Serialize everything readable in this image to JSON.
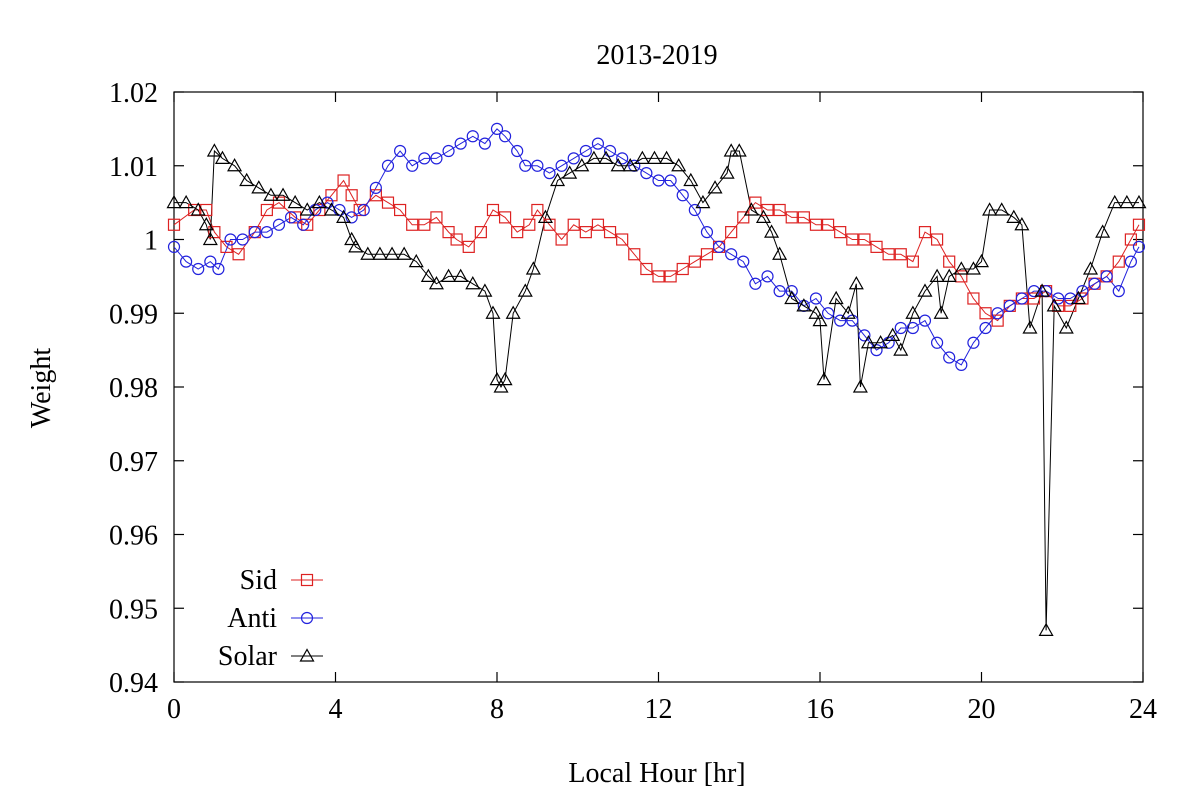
{
  "chart_data": {
    "type": "scatter",
    "title": "2013-2019",
    "xlabel": "Local Hour [hr]",
    "ylabel": "Weight",
    "xlim": [
      0,
      24
    ],
    "ylim": [
      0.94,
      1.02
    ],
    "xticks": [
      0,
      4,
      8,
      12,
      16,
      20,
      24
    ],
    "xtick_labels": [
      "0",
      "4",
      "8",
      "12",
      "16",
      "20",
      "24"
    ],
    "yticks": [
      0.94,
      0.95,
      0.96,
      0.97,
      0.98,
      0.99,
      1.0,
      1.01,
      1.02
    ],
    "ytick_labels": [
      "0.94",
      "0.95",
      "0.96",
      "0.97",
      "0.98",
      "0.99",
      "1",
      "1.01",
      "1.02"
    ],
    "grid": false,
    "legend_position": "bottom-left",
    "series": [
      {
        "name": "Sid",
        "color": "#dd2222",
        "marker": "square",
        "x": [
          0.0,
          0.5,
          0.8,
          1.0,
          1.3,
          1.6,
          2.0,
          2.3,
          2.6,
          3.0,
          3.3,
          3.6,
          3.9,
          4.2,
          4.4,
          4.6,
          5.0,
          5.3,
          5.6,
          5.9,
          6.2,
          6.5,
          6.8,
          7.0,
          7.3,
          7.6,
          7.9,
          8.2,
          8.5,
          8.8,
          9.0,
          9.3,
          9.6,
          9.9,
          10.2,
          10.5,
          10.8,
          11.1,
          11.4,
          11.7,
          12.0,
          12.3,
          12.6,
          12.9,
          13.2,
          13.5,
          13.8,
          14.1,
          14.4,
          14.7,
          15.0,
          15.3,
          15.6,
          15.9,
          16.2,
          16.5,
          16.8,
          17.1,
          17.4,
          17.7,
          18.0,
          18.3,
          18.6,
          18.9,
          19.2,
          19.5,
          19.8,
          20.1,
          20.4,
          20.7,
          21.0,
          21.3,
          21.6,
          21.9,
          22.2,
          22.5,
          22.8,
          23.1,
          23.4,
          23.7,
          23.9
        ],
        "y": [
          1.002,
          1.004,
          1.004,
          1.001,
          0.999,
          0.998,
          1.001,
          1.004,
          1.005,
          1.003,
          1.002,
          1.004,
          1.006,
          1.008,
          1.006,
          1.004,
          1.006,
          1.005,
          1.004,
          1.002,
          1.002,
          1.003,
          1.001,
          1.0,
          0.999,
          1.001,
          1.004,
          1.003,
          1.001,
          1.002,
          1.004,
          1.002,
          1.0,
          1.002,
          1.001,
          1.002,
          1.001,
          1.0,
          0.998,
          0.996,
          0.995,
          0.995,
          0.996,
          0.997,
          0.998,
          0.999,
          1.001,
          1.003,
          1.005,
          1.004,
          1.004,
          1.003,
          1.003,
          1.002,
          1.002,
          1.001,
          1.0,
          1.0,
          0.999,
          0.998,
          0.998,
          0.997,
          1.001,
          1.0,
          0.997,
          0.995,
          0.992,
          0.99,
          0.989,
          0.991,
          0.992,
          0.992,
          0.993,
          0.991,
          0.991,
          0.992,
          0.994,
          0.995,
          0.997,
          1.0,
          1.002
        ]
      },
      {
        "name": "Anti",
        "color": "#2222dd",
        "marker": "circle",
        "x": [
          0.0,
          0.3,
          0.6,
          0.9,
          1.1,
          1.4,
          1.7,
          2.0,
          2.3,
          2.6,
          2.9,
          3.2,
          3.5,
          3.8,
          4.1,
          4.4,
          4.7,
          5.0,
          5.3,
          5.6,
          5.9,
          6.2,
          6.5,
          6.8,
          7.1,
          7.4,
          7.7,
          8.0,
          8.2,
          8.5,
          8.7,
          9.0,
          9.3,
          9.6,
          9.9,
          10.2,
          10.5,
          10.8,
          11.1,
          11.4,
          11.7,
          12.0,
          12.3,
          12.6,
          12.9,
          13.2,
          13.5,
          13.8,
          14.1,
          14.4,
          14.7,
          15.0,
          15.3,
          15.6,
          15.9,
          16.2,
          16.5,
          16.8,
          17.1,
          17.4,
          17.7,
          18.0,
          18.3,
          18.6,
          18.9,
          19.2,
          19.5,
          19.8,
          20.1,
          20.4,
          20.7,
          21.0,
          21.3,
          21.6,
          21.9,
          22.2,
          22.5,
          22.8,
          23.1,
          23.4,
          23.7,
          23.9
        ],
        "y": [
          0.999,
          0.997,
          0.996,
          0.997,
          0.996,
          1.0,
          1.0,
          1.001,
          1.001,
          1.002,
          1.003,
          1.002,
          1.004,
          1.005,
          1.004,
          1.003,
          1.004,
          1.007,
          1.01,
          1.012,
          1.01,
          1.011,
          1.011,
          1.012,
          1.013,
          1.014,
          1.013,
          1.015,
          1.014,
          1.012,
          1.01,
          1.01,
          1.009,
          1.01,
          1.011,
          1.012,
          1.013,
          1.012,
          1.011,
          1.01,
          1.009,
          1.008,
          1.008,
          1.006,
          1.004,
          1.001,
          0.999,
          0.998,
          0.997,
          0.994,
          0.995,
          0.993,
          0.993,
          0.991,
          0.992,
          0.99,
          0.989,
          0.989,
          0.987,
          0.985,
          0.986,
          0.988,
          0.988,
          0.989,
          0.986,
          0.984,
          0.983,
          0.986,
          0.988,
          0.99,
          0.991,
          0.992,
          0.993,
          0.993,
          0.992,
          0.992,
          0.993,
          0.994,
          0.995,
          0.993,
          0.997,
          0.999
        ]
      },
      {
        "name": "Solar",
        "color": "#000000",
        "marker": "triangle",
        "x": [
          0.0,
          0.3,
          0.6,
          0.8,
          0.9,
          1.0,
          1.2,
          1.5,
          1.8,
          2.1,
          2.4,
          2.7,
          3.0,
          3.3,
          3.6,
          3.9,
          4.2,
          4.4,
          4.5,
          4.8,
          5.1,
          5.4,
          5.7,
          6.0,
          6.3,
          6.5,
          6.8,
          7.1,
          7.4,
          7.7,
          7.9,
          8.0,
          8.1,
          8.2,
          8.4,
          8.7,
          8.9,
          9.2,
          9.5,
          9.8,
          10.1,
          10.4,
          10.7,
          11.0,
          11.3,
          11.6,
          11.9,
          12.2,
          12.5,
          12.8,
          13.1,
          13.4,
          13.7,
          13.8,
          14.0,
          14.3,
          14.6,
          14.8,
          15.0,
          15.3,
          15.6,
          15.9,
          16.0,
          16.1,
          16.4,
          16.7,
          16.9,
          17.0,
          17.2,
          17.5,
          17.8,
          18.0,
          18.3,
          18.6,
          18.9,
          19.0,
          19.2,
          19.5,
          19.8,
          20.0,
          20.2,
          20.5,
          20.8,
          21.0,
          21.2,
          21.5,
          21.6,
          21.8,
          22.1,
          22.4,
          22.7,
          23.0,
          23.3,
          23.6,
          23.9
        ],
        "y": [
          1.005,
          1.005,
          1.004,
          1.002,
          1.0,
          1.012,
          1.011,
          1.01,
          1.008,
          1.007,
          1.006,
          1.006,
          1.005,
          1.004,
          1.005,
          1.004,
          1.003,
          1.0,
          0.999,
          0.998,
          0.998,
          0.998,
          0.998,
          0.997,
          0.995,
          0.994,
          0.995,
          0.995,
          0.994,
          0.993,
          0.99,
          0.981,
          0.98,
          0.981,
          0.99,
          0.993,
          0.996,
          1.003,
          1.008,
          1.009,
          1.01,
          1.011,
          1.011,
          1.01,
          1.01,
          1.011,
          1.011,
          1.011,
          1.01,
          1.008,
          1.005,
          1.007,
          1.009,
          1.012,
          1.012,
          1.004,
          1.003,
          1.001,
          0.998,
          0.992,
          0.991,
          0.99,
          0.989,
          0.981,
          0.992,
          0.99,
          0.994,
          0.98,
          0.986,
          0.986,
          0.987,
          0.985,
          0.99,
          0.993,
          0.995,
          0.99,
          0.995,
          0.996,
          0.996,
          0.997,
          1.004,
          1.004,
          1.003,
          1.002,
          0.988,
          0.993,
          0.947,
          0.991,
          0.988,
          0.992,
          0.996,
          1.001,
          1.005,
          1.005,
          1.005
        ]
      }
    ]
  }
}
